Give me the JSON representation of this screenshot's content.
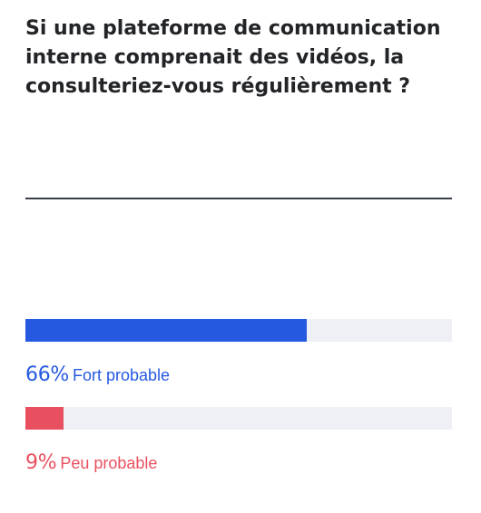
{
  "question": {
    "title": "Si une plateforme de communication interne comprenait des vidéos, la consulteriez-vous régulièrement ?"
  },
  "colors": {
    "title": "#222427",
    "divider": "#3a3f4a",
    "track": "#eef0f5"
  },
  "chart_data": {
    "type": "bar",
    "orientation": "horizontal",
    "title": "Si une plateforme de communication interne comprenait des vidéos, la consulteriez-vous régulièrement ?",
    "xlim": [
      0,
      100
    ],
    "grid": false,
    "categories": [
      "Fort probable",
      "Peu probable"
    ],
    "values": [
      66,
      9
    ],
    "value_labels": [
      "66%",
      "9%"
    ],
    "colors": [
      "#2559e0",
      "#e9505f"
    ]
  }
}
